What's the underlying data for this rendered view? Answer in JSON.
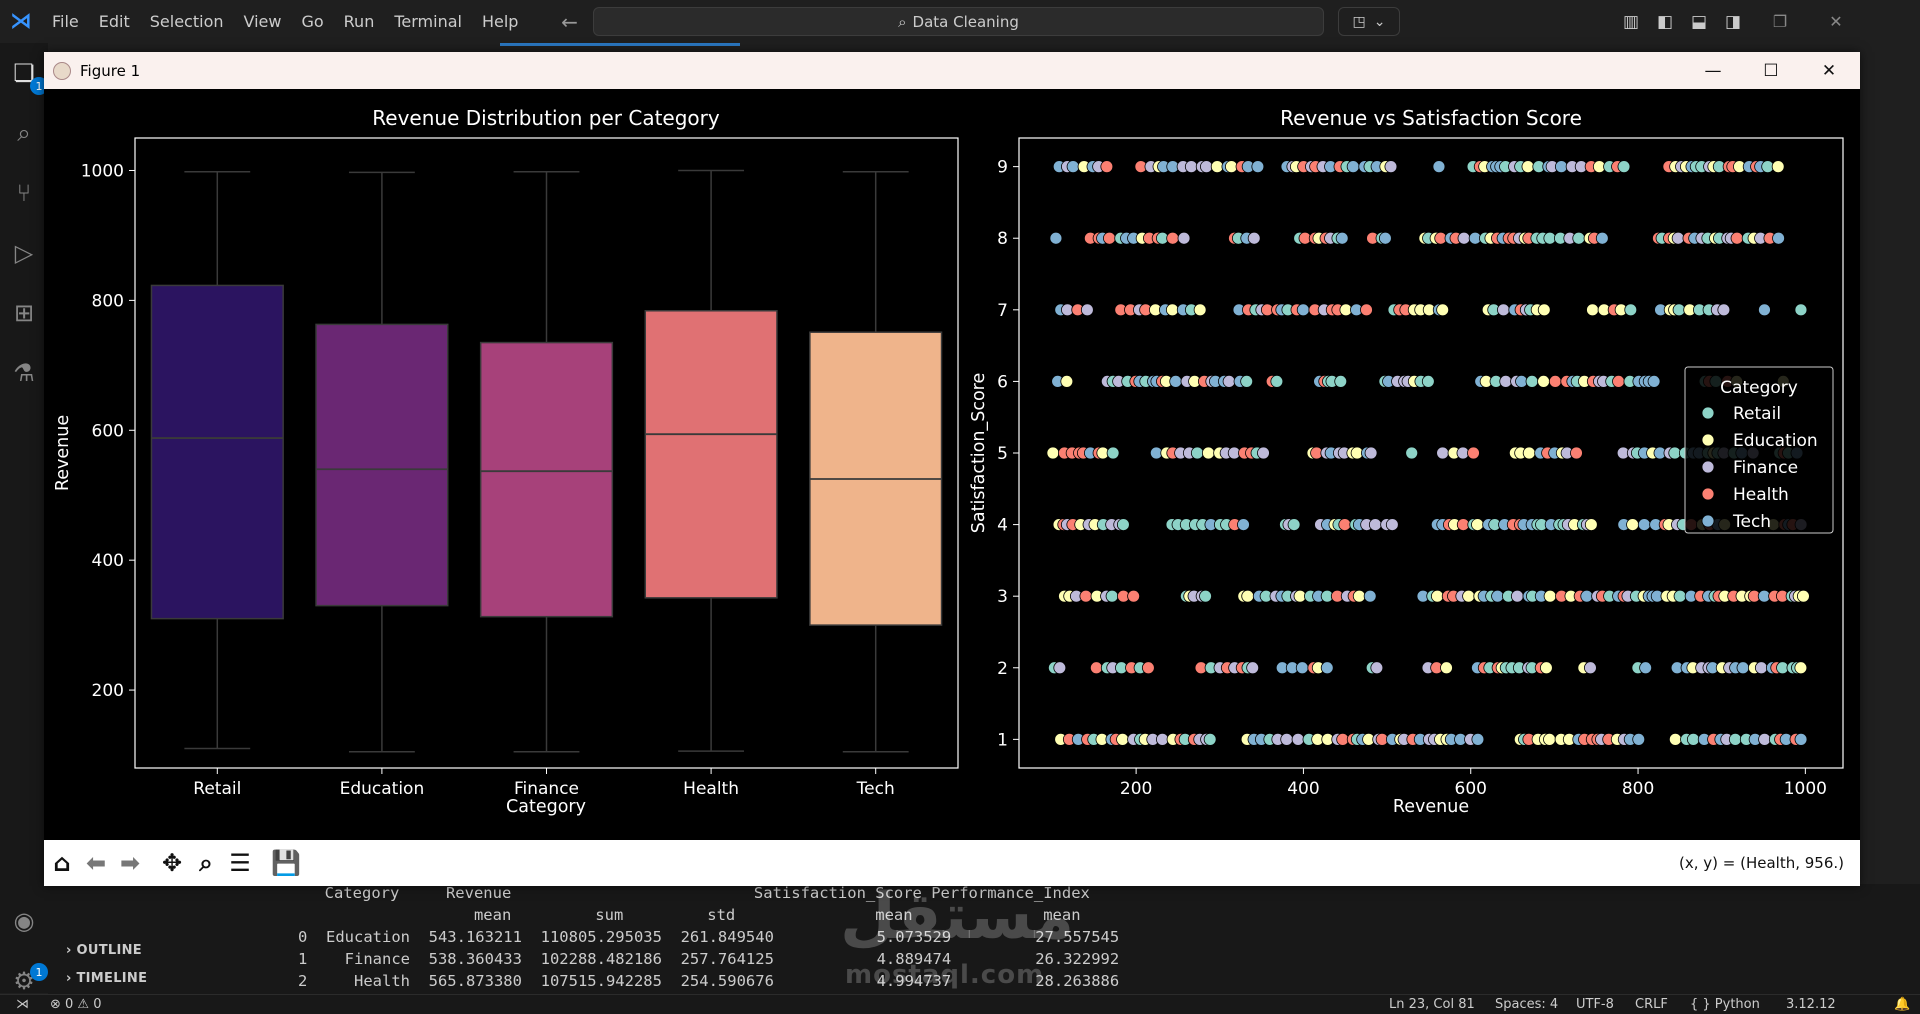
{
  "vscode": {
    "menu": [
      "File",
      "Edit",
      "Selection",
      "View",
      "Go",
      "Run",
      "Terminal",
      "Help"
    ],
    "search_text": "Data Cleaning",
    "activity_badges": [
      "1",
      "1"
    ]
  },
  "figure_window": {
    "title": "Figure 1",
    "coord_readout": "(x, y) = (Health, 956.)"
  },
  "colors": {
    "boxes": [
      "#2b1460",
      "#6a2773",
      "#a7417a",
      "#e07173",
      "#efb48b"
    ],
    "scatter": {
      "Retail": "#8dd3c7",
      "Education": "#ffffb3",
      "Finance": "#bebada",
      "Health": "#fb8072",
      "Tech": "#80b1d3"
    }
  },
  "chart_data": [
    {
      "type": "box",
      "title": "Revenue Distribution per Category",
      "xlabel": "Category",
      "ylabel": "Revenue",
      "categories": [
        "Retail",
        "Education",
        "Finance",
        "Health",
        "Tech"
      ],
      "stats": [
        {
          "category": "Retail",
          "min": 110,
          "q1": 310,
          "median": 588,
          "q3": 823,
          "max": 998
        },
        {
          "category": "Education",
          "min": 105,
          "q1": 330,
          "median": 540,
          "q3": 763,
          "max": 997
        },
        {
          "category": "Finance",
          "min": 105,
          "q1": 313,
          "median": 537,
          "q3": 735,
          "max": 998
        },
        {
          "category": "Health",
          "min": 106,
          "q1": 342,
          "median": 594,
          "q3": 784,
          "max": 1000
        },
        {
          "category": "Tech",
          "min": 105,
          "q1": 300,
          "median": 525,
          "q3": 751,
          "max": 998
        }
      ],
      "ylim": [
        80,
        1050
      ],
      "yticks": [
        200,
        400,
        600,
        800,
        1000
      ]
    },
    {
      "type": "scatter",
      "title": "Revenue vs Satisfaction Score",
      "xlabel": "Revenue",
      "ylabel": "Satisfaction_Score",
      "xlim": [
        60,
        1045
      ],
      "ylim": [
        0.6,
        9.4
      ],
      "xticks": [
        200,
        400,
        600,
        800,
        1000
      ],
      "yticks": [
        1,
        2,
        3,
        4,
        5,
        6,
        7,
        8,
        9
      ],
      "legend": {
        "title": "Category",
        "entries": [
          "Retail",
          "Education",
          "Finance",
          "Health",
          "Tech"
        ],
        "position": "center-right"
      },
      "series_note": "points at integer satisfaction scores 1-9, revenue spread across 100-1000 for every category"
    }
  ],
  "panels": {
    "outline": "OUTLINE",
    "timeline": "TIMELINE"
  },
  "terminal": {
    "header1": "     Category     Revenue                          Satisfaction_Score Performance_Index",
    "header2": "                     mean         sum         std               mean              mean",
    "rows": [
      "0  Education  543.163211  110805.295035  261.849540           5.073529         27.557545",
      "1    Finance  538.360433  102288.482186  257.764125           4.889474         26.322992",
      "2     Health  565.873380  107515.942285  254.590676           4.994737         28.263886"
    ]
  },
  "watermark": {
    "arabic": "مستقل",
    "latin": "mostaql.com"
  },
  "statusbar": {
    "problems": "⊗ 0  ⚠ 0",
    "cursor": "Ln 23, Col 81",
    "spaces": "Spaces: 4",
    "encoding": "UTF-8",
    "eol": "CRLF",
    "language": "{ } Python",
    "version": "3.12.12"
  }
}
